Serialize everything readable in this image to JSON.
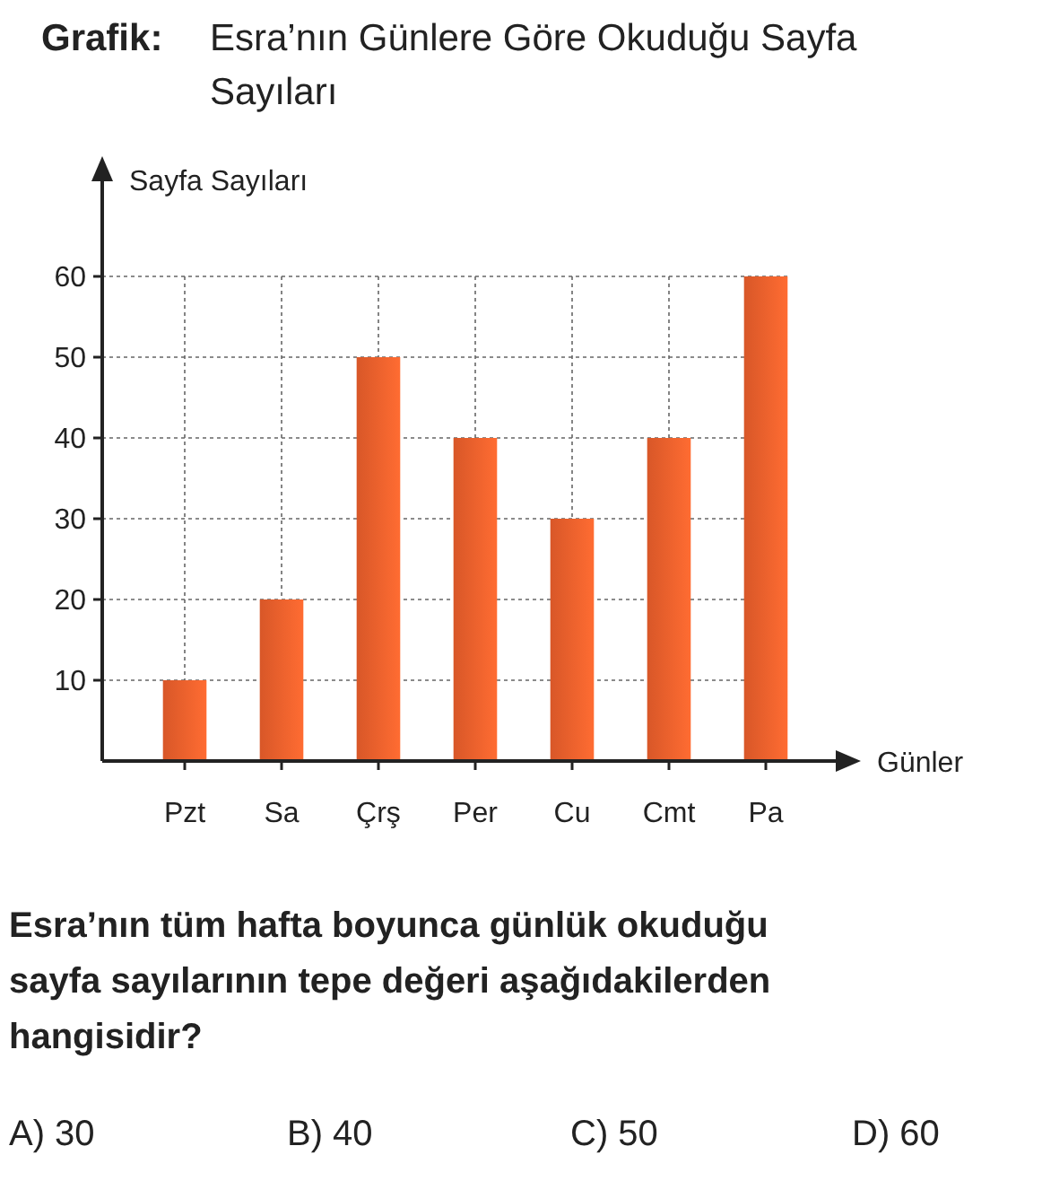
{
  "chart_data": {
    "type": "bar",
    "title": "Grafik: Esra’nın Günlere Göre Okuduğu Sayfa Sayıları",
    "xlabel": "Günler",
    "ylabel": "Sayfa Sayıları",
    "categories": [
      "Pzt",
      "Sa",
      "Çrş",
      "Per",
      "Cu",
      "Cmt",
      "Pa"
    ],
    "values": [
      10,
      20,
      50,
      40,
      30,
      40,
      60
    ],
    "color": "#ec5f2c",
    "ylim": [
      0,
      74
    ],
    "yticks": [
      10,
      20,
      30,
      40,
      50,
      60
    ],
    "grid": true,
    "annotations": [
      "Esra’nın tüm hafta boyunca günlük okuduğu sayfa sayılarının tepe değeri aşağıdakilerden hangisidir?",
      "A) 30",
      "B) 40",
      "C) 50",
      "D) 60"
    ]
  }
}
